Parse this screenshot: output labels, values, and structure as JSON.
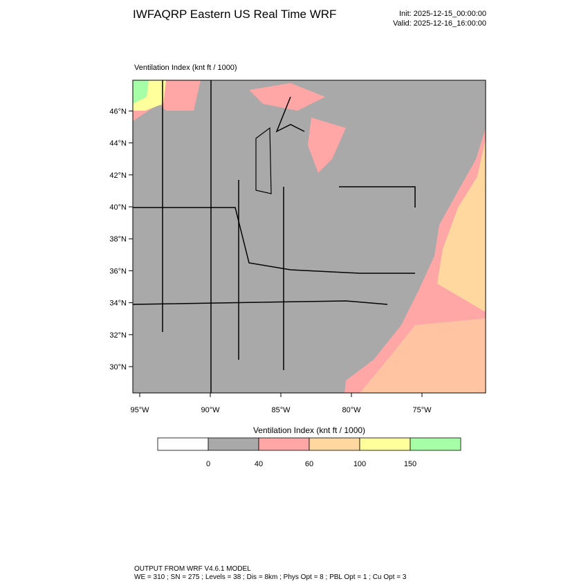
{
  "header": {
    "title": "IWFAQRP Eastern US Real Time WRF",
    "init": "Init: 2025-12-15_00:00:00",
    "valid": "Valid: 2025-12-16_16:00:00"
  },
  "map": {
    "label": "Ventilation Index   (knt ft / 1000)",
    "lat_labels": [
      "30°N",
      "32°N",
      "34°N",
      "36°N",
      "38°N",
      "40°N",
      "42°N",
      "44°N",
      "46°N"
    ],
    "lon_labels": [
      "95°W",
      "90°W",
      "85°W",
      "80°W",
      "75°W"
    ]
  },
  "legend": {
    "title": "Ventilation Index  (knt ft / 1000)",
    "colors": [
      "#ffffff",
      "#a9a9a9",
      "#ffa6a6",
      "#ffd8a0",
      "#ffff9c",
      "#a6ffa6"
    ],
    "labels": [
      "0",
      "40",
      "60",
      "100",
      "150"
    ]
  },
  "footer": {
    "line1": "OUTPUT FROM WRF V4.6.1 MODEL",
    "line2": "WE = 310 ; SN = 275 ; Levels = 38 ; Dis = 8km ; Phys Opt = 8 ; PBL Opt = 1 ; Cu Opt = 3"
  }
}
